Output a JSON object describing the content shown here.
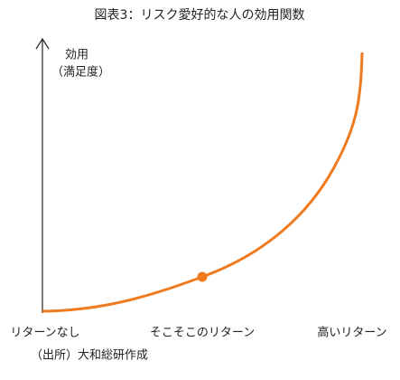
{
  "title": "図表3：リスク愛好的な人の効用関数",
  "y_axis_label": [
    "効用",
    "（満足度）"
  ],
  "x_labels": [
    "リターンなし",
    "そこそこのリターン",
    "高いリターン"
  ],
  "source": "（出所）大和総研作成"
}
